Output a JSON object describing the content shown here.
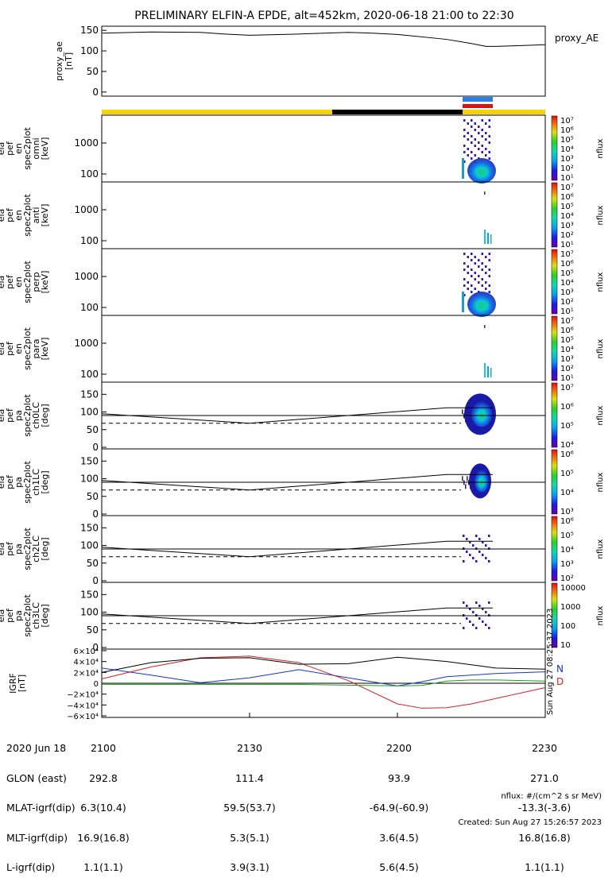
{
  "title": "PRELIMINARY ELFIN-A EPDE, alt=452km, 2020-06-18 21:00 to 22:30",
  "colors": {
    "sunlight_bar": "#f5d10a",
    "shadow_bar": "#000000",
    "science_zone_top": "#2b7fe0",
    "science_zone_bottom": "#e01010",
    "grf_n": "#1533cc",
    "grf_d": "#d42020",
    "grf_e": "#1a9e1a"
  },
  "chart_data": [
    {
      "type": "line",
      "panel": "proxy_ae",
      "ylabel": [
        "proxy_ae",
        "[nT]"
      ],
      "legend": "proxy_AE",
      "yticks": [
        "150",
        "100",
        "50",
        "0"
      ],
      "ylim": [
        -10,
        160
      ],
      "xlim": [
        0,
        90
      ],
      "x_minutes_after_2100": [
        0,
        10,
        20,
        25,
        30,
        40,
        50,
        55,
        60,
        70,
        75,
        78,
        80,
        85,
        90
      ],
      "values": [
        143,
        146,
        145,
        141,
        138,
        141,
        145,
        143,
        140,
        128,
        118,
        111,
        111,
        113,
        115
      ]
    },
    {
      "type": "heatmap",
      "panel": "omni",
      "ylabel": [
        "ela",
        "pef",
        "en",
        "spec2plot",
        "omni",
        "[keV]"
      ],
      "yticks": [
        "1000",
        "100"
      ],
      "scale": "log",
      "colorbar_label": "nflux",
      "colorbar_ticks": [
        "10⁷",
        "10⁶",
        "10⁵",
        "10⁴",
        "10³",
        "10²",
        "10¹"
      ]
    },
    {
      "type": "heatmap",
      "panel": "anti",
      "ylabel": [
        "ela",
        "pef",
        "en",
        "spec2plot",
        "anti",
        "[keV]"
      ],
      "yticks": [
        "1000",
        "100"
      ],
      "scale": "log",
      "colorbar_label": "nflux",
      "colorbar_ticks": [
        "10⁷",
        "10⁶",
        "10⁵",
        "10⁴",
        "10³",
        "10²",
        "10¹"
      ]
    },
    {
      "type": "heatmap",
      "panel": "perp",
      "ylabel": [
        "ela",
        "pef",
        "en",
        "spec2plot",
        "perp",
        "[keV]"
      ],
      "yticks": [
        "1000",
        "100"
      ],
      "scale": "log",
      "colorbar_label": "nflux",
      "colorbar_ticks": [
        "10⁷",
        "10⁶",
        "10⁵",
        "10⁴",
        "10³",
        "10²",
        "10¹"
      ]
    },
    {
      "type": "heatmap",
      "panel": "para",
      "ylabel": [
        "ela",
        "pef",
        "en",
        "spec2plot",
        "para",
        "[keV]"
      ],
      "yticks": [
        "1000",
        "100"
      ],
      "scale": "log",
      "colorbar_label": "nflux",
      "colorbar_ticks": [
        "10⁷",
        "10⁶",
        "10⁵",
        "10⁴",
        "10³",
        "10²",
        "10¹"
      ]
    },
    {
      "type": "heatmap",
      "panel": "ch0LC",
      "ylabel": [
        "ela",
        "pef",
        "pa",
        "spec2plot",
        "ch0LC",
        "[deg]"
      ],
      "yticks": [
        "150",
        "100",
        "50",
        "0"
      ],
      "colorbar_label": "nflux",
      "colorbar_ticks": [
        "10⁷",
        "10⁶",
        "10⁵",
        "10⁴"
      ],
      "ylim": [
        0,
        180
      ]
    },
    {
      "type": "heatmap",
      "panel": "ch1LC",
      "ylabel": [
        "ela",
        "pef",
        "pa",
        "spec2plot",
        "ch1LC",
        "[deg]"
      ],
      "yticks": [
        "150",
        "100",
        "50",
        "0"
      ],
      "colorbar_label": "nflux",
      "colorbar_ticks": [
        "10⁶",
        "10⁵",
        "10⁴",
        "10³"
      ],
      "ylim": [
        0,
        180
      ]
    },
    {
      "type": "heatmap",
      "panel": "ch2LC",
      "ylabel": [
        "ela",
        "pef",
        "pa",
        "spec2plot",
        "ch2LC",
        "[deg]"
      ],
      "yticks": [
        "150",
        "100",
        "50",
        "0"
      ],
      "colorbar_label": "nflux",
      "colorbar_ticks": [
        "10⁶",
        "10⁵",
        "10⁴",
        "10³",
        "10²"
      ],
      "ylim": [
        0,
        180
      ]
    },
    {
      "type": "heatmap",
      "panel": "ch3LC",
      "ylabel": [
        "ela",
        "pef",
        "pa",
        "spec2plot",
        "ch3LC",
        "[deg]"
      ],
      "yticks": [
        "150",
        "100",
        "50",
        "0"
      ],
      "colorbar_label": "nflux",
      "colorbar_ticks": [
        "10000",
        "1000",
        "100",
        "10"
      ],
      "ylim": [
        0,
        180
      ]
    },
    {
      "type": "line",
      "panel": "IGRF",
      "ylabel": [
        "IGRF",
        "[nT]"
      ],
      "yticks": [
        "6×10⁴",
        "4×10⁴",
        "2×10⁴",
        "0",
        "−2×10⁴",
        "−4×10⁴",
        "−6×10⁴"
      ],
      "ylim": [
        -60000,
        60000
      ],
      "legend": [
        "N",
        "D"
      ],
      "side_text": "Sun Aug 27 08:25:37 2023",
      "series": [
        {
          "name": "N",
          "x": [
            0,
            10,
            20,
            30,
            40,
            50,
            60,
            65,
            70,
            75,
            80,
            90
          ],
          "y": [
            28000,
            15000,
            1000,
            10000,
            25000,
            10000,
            -5000,
            3000,
            12000,
            15000,
            18000,
            21000
          ]
        },
        {
          "name": "D",
          "x": [
            0,
            10,
            20,
            30,
            40,
            50,
            60,
            65,
            70,
            75,
            80,
            90
          ],
          "y": [
            8000,
            30000,
            47000,
            50000,
            38000,
            5000,
            -38000,
            -46000,
            -45000,
            -38000,
            -28000,
            -8000
          ]
        },
        {
          "name": "black",
          "x": [
            0,
            10,
            20,
            30,
            40,
            50,
            60,
            70,
            80,
            90
          ],
          "y": [
            20000,
            38000,
            46000,
            47000,
            35000,
            36000,
            48000,
            40000,
            28000,
            26000
          ]
        },
        {
          "name": "green",
          "x": [
            0,
            20,
            40,
            60,
            65,
            70,
            75,
            80,
            90
          ],
          "y": [
            -2000,
            -2000,
            -2000,
            -5000,
            -4000,
            4000,
            6000,
            6000,
            4000
          ]
        }
      ]
    }
  ],
  "footer": {
    "row_labels": [
      "2020 Jun 18",
      "GLON (east)",
      "MLAT-igrf(dip)",
      "MLT-igrf(dip)",
      "L-igrf(dip)"
    ],
    "columns": [
      [
        "2100",
        "292.8",
        "6.3(10.4)",
        "16.9(16.8)",
        "1.1(1.1)"
      ],
      [
        "2130",
        "111.4",
        "59.5(53.7)",
        "5.3(5.1)",
        "3.9(3.1)"
      ],
      [
        "2200",
        "93.9",
        "-64.9(-60.9)",
        "3.6(4.5)",
        "5.6(4.5)"
      ],
      [
        "2230",
        "271.0",
        "-13.3(-3.6)",
        "16.8(16.8)",
        "1.1(1.1)"
      ]
    ],
    "note": "nflux: #/(cm^2 s sr MeV)",
    "created": "Created: Sun Aug 27 15:26:57 2023"
  }
}
